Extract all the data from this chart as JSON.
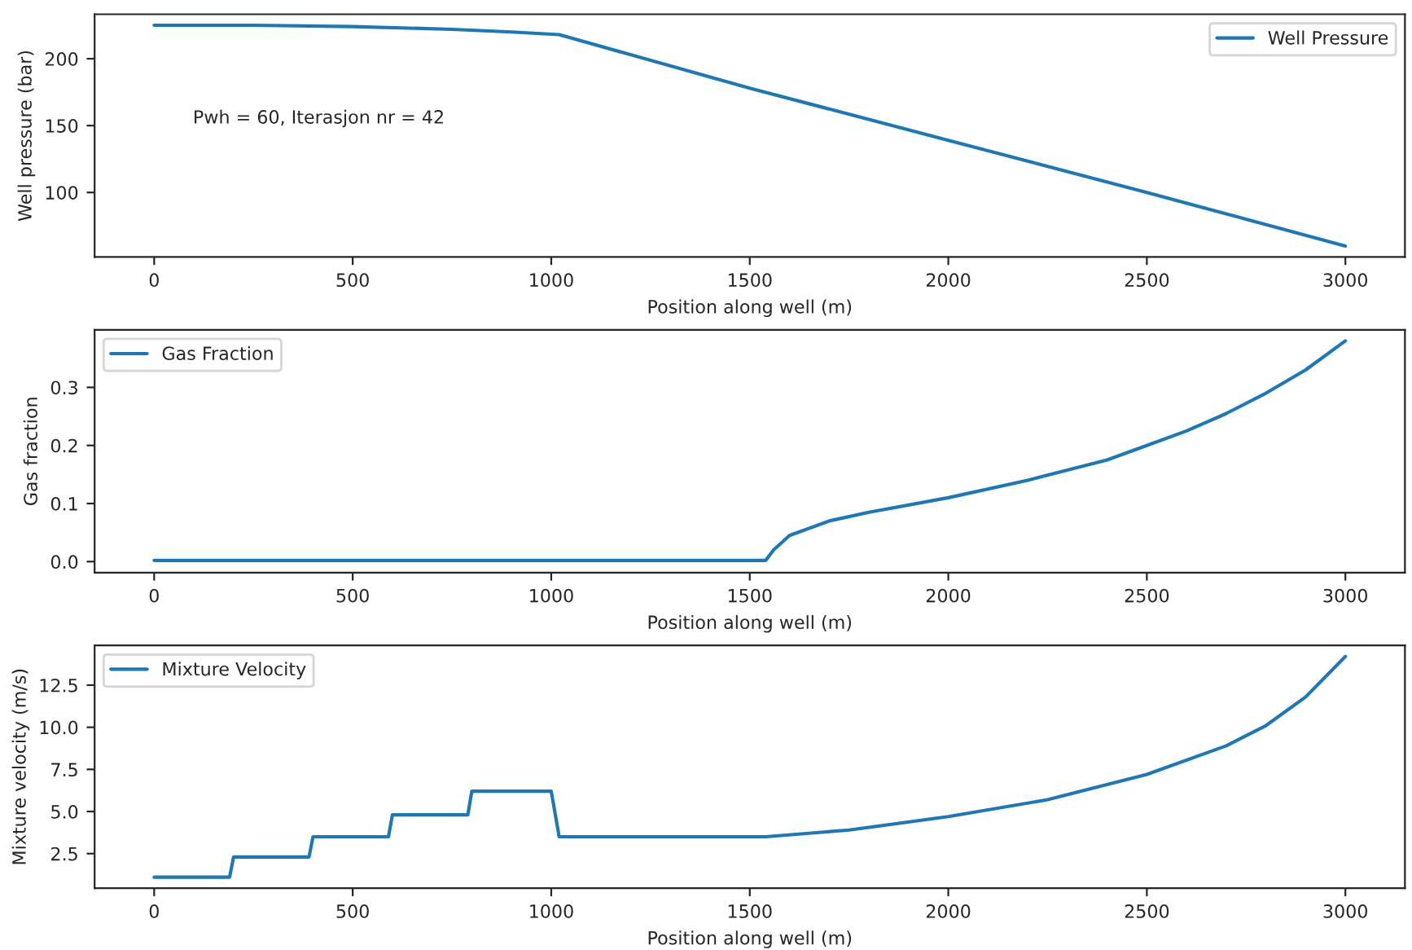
{
  "chart_data": [
    {
      "type": "line",
      "xlabel": "Position along well (m)",
      "ylabel": "Well pressure (bar)",
      "annotations": [
        "Pwh = 60, Iterasjon nr = 42"
      ],
      "xlim": [
        -150,
        3150
      ],
      "ylim": [
        51.75,
        233.25
      ],
      "xticks": [
        0,
        500,
        1000,
        1500,
        2000,
        2500,
        3000
      ],
      "yticks": [
        100,
        150,
        200
      ],
      "legend": "top right",
      "grid": false,
      "series": [
        {
          "name": "Well Pressure",
          "color": "#1f77b4",
          "x": [
            0,
            250,
            500,
            750,
            900,
            1020,
            1500,
            2000,
            2500,
            3000
          ],
          "values": [
            225,
            225,
            224,
            222,
            220,
            218,
            178,
            139,
            100,
            60
          ]
        }
      ]
    },
    {
      "type": "line",
      "xlabel": "Position along well (m)",
      "ylabel": "Gas fraction",
      "xlim": [
        -150,
        3150
      ],
      "ylim": [
        -0.019,
        0.399
      ],
      "xticks": [
        0,
        500,
        1000,
        1500,
        2000,
        2500,
        3000
      ],
      "yticks": [
        {
          "value": 0,
          "label": "0.0"
        },
        0.1,
        0.2,
        0.3
      ],
      "legend": "top left",
      "grid": false,
      "series": [
        {
          "name": "Gas Fraction",
          "color": "#1f77b4",
          "x": [
            0,
            1540,
            1560,
            1600,
            1700,
            1800,
            2000,
            2200,
            2400,
            2500,
            2600,
            2700,
            2800,
            2900,
            3000
          ],
          "values": [
            0.002,
            0.002,
            0.02,
            0.045,
            0.07,
            0.085,
            0.11,
            0.14,
            0.175,
            0.2,
            0.225,
            0.255,
            0.29,
            0.33,
            0.38
          ]
        }
      ]
    },
    {
      "type": "line",
      "xlabel": "Position along well (m)",
      "ylabel": "Mixture velocity (m/s)",
      "xlim": [
        -150,
        3150
      ],
      "ylim": [
        0.445,
        14.855
      ],
      "xticks": [
        0,
        500,
        1000,
        1500,
        2000,
        2500,
        3000
      ],
      "yticks": [
        2.5,
        {
          "value": 5,
          "label": "5.0"
        },
        7.5,
        {
          "value": 10,
          "label": "10.0"
        },
        12.5
      ],
      "legend": "top left",
      "grid": false,
      "series": [
        {
          "name": "Mixture Velocity",
          "color": "#1f77b4",
          "x": [
            0,
            190,
            200,
            390,
            400,
            590,
            600,
            790,
            800,
            1000,
            1020,
            1540,
            1750,
            2000,
            2250,
            2500,
            2700,
            2800,
            2900,
            3000
          ],
          "values": [
            1.1,
            1.1,
            2.3,
            2.3,
            3.5,
            3.5,
            4.8,
            4.8,
            6.2,
            6.2,
            3.5,
            3.5,
            3.9,
            4.7,
            5.7,
            7.2,
            8.9,
            10.1,
            11.8,
            14.2
          ]
        }
      ]
    }
  ]
}
